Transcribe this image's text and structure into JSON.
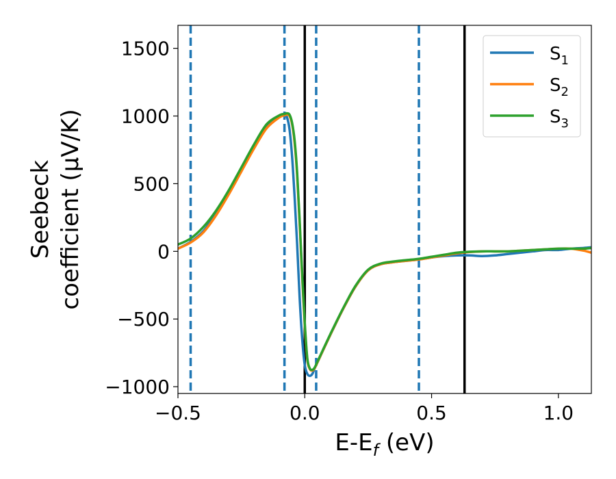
{
  "chart_data": {
    "type": "line",
    "xlabel": "E-E$_f$ (eV)",
    "xlabel_parts": [
      "E-E",
      "f",
      " (eV)"
    ],
    "ylabel": "Seebeck\ncoefficient  ($\\mu$V/K)",
    "ylabel_line1": "Seebeck",
    "ylabel_line2": "coefficient  (μV/K)",
    "xlim": [
      -0.5,
      1.13
    ],
    "ylim": [
      -1050,
      1670
    ],
    "xticks": [
      -0.5,
      0.0,
      0.5,
      1.0
    ],
    "xtick_labels": [
      "−0.5",
      "0.0",
      "0.5",
      "1.0"
    ],
    "yticks": [
      -1000,
      -500,
      0,
      500,
      1000,
      1500
    ],
    "ytick_labels": [
      "−1000",
      "−500",
      "0",
      "500",
      "1000",
      "1500"
    ],
    "grid": false,
    "legend_position": "top-right",
    "vlines_dashed": [
      -0.45,
      -0.08,
      0.045,
      0.45
    ],
    "vlines_solid": [
      0.0,
      0.63
    ],
    "vline_dashed_color": "#1f77b4",
    "vline_solid_color": "#000000",
    "series": [
      {
        "name": "S1",
        "label_base": "S",
        "label_sub": "1",
        "color": "#1f77b4",
        "x": [
          -0.5,
          -0.45,
          -0.4,
          -0.35,
          -0.3,
          -0.25,
          -0.2,
          -0.15,
          -0.1,
          -0.08,
          -0.07,
          -0.06,
          -0.05,
          -0.04,
          -0.03,
          -0.02,
          -0.01,
          0.0,
          0.01,
          0.02,
          0.03,
          0.04,
          0.06,
          0.1,
          0.15,
          0.2,
          0.25,
          0.3,
          0.35,
          0.4,
          0.45,
          0.5,
          0.55,
          0.6,
          0.65,
          0.7,
          0.75,
          0.8,
          0.85,
          0.9,
          0.95,
          1.0,
          1.05,
          1.1,
          1.13
        ],
        "y": [
          20,
          70,
          150,
          280,
          440,
          610,
          780,
          930,
          1000,
          1010,
          990,
          900,
          700,
          400,
          50,
          -350,
          -650,
          -840,
          -905,
          -920,
          -905,
          -860,
          -780,
          -620,
          -430,
          -260,
          -140,
          -95,
          -80,
          -70,
          -60,
          -45,
          -35,
          -30,
          -30,
          -35,
          -30,
          -20,
          -10,
          0,
          10,
          10,
          20,
          25,
          30
        ]
      },
      {
        "name": "S2",
        "label_base": "S",
        "label_sub": "2",
        "color": "#ff7f0e",
        "x": [
          -0.5,
          -0.45,
          -0.4,
          -0.35,
          -0.3,
          -0.25,
          -0.2,
          -0.15,
          -0.1,
          -0.08,
          -0.07,
          -0.06,
          -0.05,
          -0.04,
          -0.03,
          -0.02,
          -0.01,
          0.0,
          0.01,
          0.02,
          0.03,
          0.04,
          0.06,
          0.1,
          0.15,
          0.2,
          0.25,
          0.3,
          0.35,
          0.4,
          0.45,
          0.5,
          0.55,
          0.6,
          0.65,
          0.7,
          0.75,
          0.8,
          0.85,
          0.9,
          0.95,
          1.0,
          1.05,
          1.1,
          1.13
        ],
        "y": [
          20,
          65,
          140,
          265,
          420,
          590,
          760,
          910,
          990,
          1005,
          1010,
          1000,
          940,
          800,
          560,
          200,
          -200,
          -550,
          -800,
          -870,
          -880,
          -860,
          -780,
          -620,
          -430,
          -260,
          -140,
          -95,
          -80,
          -70,
          -60,
          -45,
          -30,
          -15,
          -5,
          0,
          0,
          0,
          5,
          10,
          15,
          20,
          20,
          5,
          -10
        ]
      },
      {
        "name": "S3",
        "label_base": "S",
        "label_sub": "3",
        "color": "#2ca02c",
        "x": [
          -0.5,
          -0.45,
          -0.4,
          -0.35,
          -0.3,
          -0.25,
          -0.2,
          -0.15,
          -0.1,
          -0.08,
          -0.07,
          -0.06,
          -0.05,
          -0.04,
          -0.03,
          -0.02,
          -0.01,
          0.0,
          0.01,
          0.02,
          0.03,
          0.04,
          0.06,
          0.1,
          0.15,
          0.2,
          0.25,
          0.3,
          0.35,
          0.4,
          0.45,
          0.5,
          0.55,
          0.6,
          0.65,
          0.7,
          0.75,
          0.8,
          0.85,
          0.9,
          0.95,
          1.0,
          1.05,
          1.1,
          1.13
        ],
        "y": [
          50,
          95,
          180,
          300,
          450,
          620,
          790,
          940,
          1005,
          1015,
          1020,
          1010,
          950,
          820,
          580,
          220,
          -180,
          -530,
          -790,
          -865,
          -875,
          -855,
          -775,
          -615,
          -425,
          -255,
          -135,
          -90,
          -75,
          -65,
          -55,
          -40,
          -25,
          -10,
          -3,
          0,
          0,
          0,
          5,
          10,
          15,
          20,
          20,
          20,
          25
        ]
      }
    ]
  }
}
